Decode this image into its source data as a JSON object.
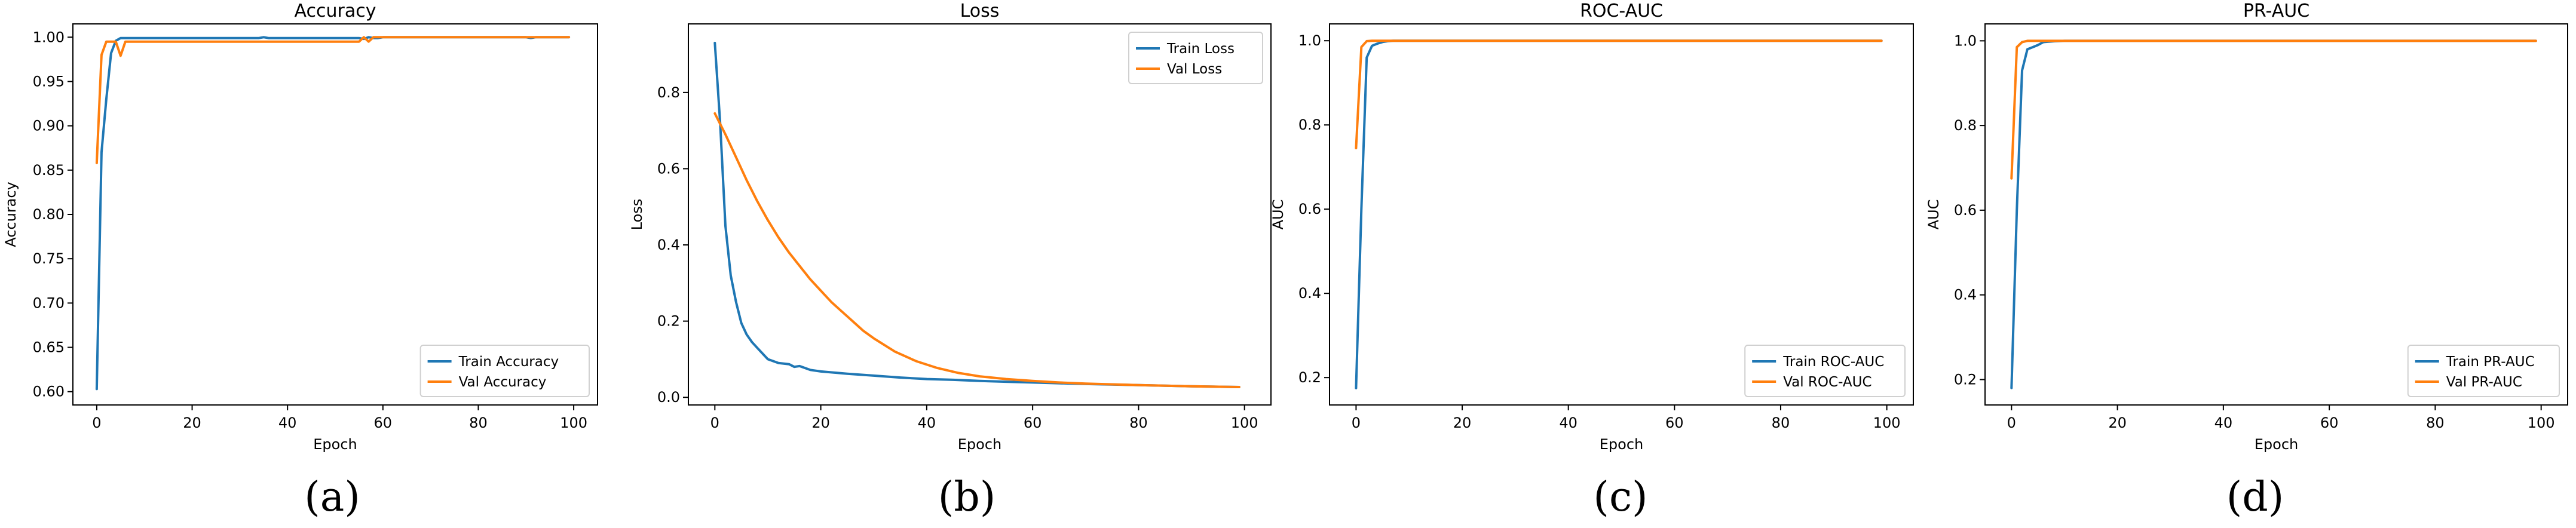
{
  "colors": {
    "train": "#1f77b4",
    "val": "#ff7f0e"
  },
  "panels": [
    {
      "letter": "(a)",
      "chart_data": {
        "type": "line",
        "title": "Accuracy",
        "xlabel": "Epoch",
        "ylabel": "Accuracy",
        "xlim": [
          -5,
          105
        ],
        "ylim": [
          0.585,
          1.015
        ],
        "xticks": [
          0,
          20,
          40,
          60,
          80,
          100
        ],
        "yticks": [
          0.6,
          0.65,
          0.7,
          0.75,
          0.8,
          0.85,
          0.9,
          0.95,
          1.0
        ],
        "ytick_labels": [
          "0.60",
          "0.65",
          "0.70",
          "0.75",
          "0.80",
          "0.85",
          "0.90",
          "0.95",
          "1.00"
        ],
        "grid": false,
        "legend_position": "lower-right",
        "series": [
          {
            "name": "Train Accuracy",
            "color": "#1f77b4",
            "x": [
              0,
              1,
              2,
              3,
              4,
              5,
              10,
              20,
              34,
              35,
              36,
              40,
              50,
              55,
              56,
              57,
              58,
              59,
              60,
              70,
              80,
              90,
              91,
              92,
              99
            ],
            "y": [
              0.603,
              0.87,
              0.93,
              0.982,
              0.996,
              0.999,
              0.999,
              0.999,
              0.999,
              1.0,
              0.999,
              0.999,
              0.999,
              0.999,
              0.998,
              1.0,
              0.999,
              0.999,
              1.0,
              1.0,
              1.0,
              1.0,
              0.999,
              1.0,
              1.0
            ]
          },
          {
            "name": "Val Accuracy",
            "color": "#ff7f0e",
            "x": [
              0,
              1,
              2,
              3,
              4,
              5,
              6,
              7,
              8,
              20,
              40,
              55,
              56,
              57,
              58,
              59,
              60,
              70,
              80,
              99
            ],
            "y": [
              0.858,
              0.98,
              0.995,
              0.995,
              0.995,
              0.979,
              0.995,
              0.995,
              0.995,
              0.995,
              0.995,
              0.995,
              1.0,
              0.995,
              1.0,
              1.0,
              1.0,
              1.0,
              1.0,
              1.0
            ]
          }
        ]
      }
    },
    {
      "letter": "(b)",
      "chart_data": {
        "type": "line",
        "title": "Loss",
        "xlabel": "Epoch",
        "ylabel": "Loss",
        "xlim": [
          -5,
          105
        ],
        "ylim": [
          -0.02,
          0.98
        ],
        "xticks": [
          0,
          20,
          40,
          60,
          80,
          100
        ],
        "yticks": [
          0.0,
          0.2,
          0.4,
          0.6,
          0.8
        ],
        "ytick_labels": [
          "0.0",
          "0.2",
          "0.4",
          "0.6",
          "0.8"
        ],
        "grid": false,
        "legend_position": "upper-right",
        "series": [
          {
            "name": "Train Loss",
            "color": "#1f77b4",
            "x": [
              0,
              1,
              2,
              3,
              4,
              5,
              6,
              7,
              8,
              9,
              10,
              12,
              14,
              15,
              16,
              18,
              20,
              25,
              30,
              35,
              40,
              45,
              50,
              55,
              60,
              70,
              80,
              90,
              99
            ],
            "y": [
              0.93,
              0.72,
              0.45,
              0.32,
              0.25,
              0.195,
              0.165,
              0.145,
              0.13,
              0.115,
              0.1,
              0.09,
              0.087,
              0.08,
              0.082,
              0.072,
              0.068,
              0.062,
              0.057,
              0.052,
              0.048,
              0.046,
              0.043,
              0.041,
              0.039,
              0.035,
              0.032,
              0.029,
              0.027
            ]
          },
          {
            "name": "Val Loss",
            "color": "#ff7f0e",
            "x": [
              0,
              2,
              4,
              6,
              8,
              10,
              12,
              14,
              16,
              18,
              20,
              22,
              24,
              26,
              28,
              30,
              34,
              38,
              42,
              46,
              50,
              55,
              60,
              65,
              70,
              80,
              90,
              99
            ],
            "y": [
              0.745,
              0.69,
              0.63,
              0.57,
              0.515,
              0.465,
              0.42,
              0.38,
              0.345,
              0.31,
              0.28,
              0.25,
              0.225,
              0.2,
              0.175,
              0.155,
              0.12,
              0.095,
              0.077,
              0.064,
              0.055,
              0.048,
              0.043,
              0.039,
              0.036,
              0.032,
              0.029,
              0.027
            ]
          }
        ]
      }
    },
    {
      "letter": "(c)",
      "chart_data": {
        "type": "line",
        "title": "ROC-AUC",
        "xlabel": "Epoch",
        "ylabel": "AUC",
        "xlim": [
          -5,
          105
        ],
        "ylim": [
          0.135,
          1.04
        ],
        "xticks": [
          0,
          20,
          40,
          60,
          80,
          100
        ],
        "yticks": [
          0.2,
          0.4,
          0.6,
          0.8,
          1.0
        ],
        "ytick_labels": [
          "0.2",
          "0.4",
          "0.6",
          "0.8",
          "1.0"
        ],
        "grid": false,
        "legend_position": "lower-right",
        "series": [
          {
            "name": "Train ROC-AUC",
            "color": "#1f77b4",
            "x": [
              0,
              1,
              2,
              3,
              4,
              5,
              6,
              7,
              10,
              20,
              40,
              60,
              80,
              99
            ],
            "y": [
              0.175,
              0.6,
              0.96,
              0.988,
              0.993,
              0.997,
              0.999,
              1.0,
              1.0,
              1.0,
              1.0,
              1.0,
              1.0,
              1.0
            ]
          },
          {
            "name": "Val ROC-AUC",
            "color": "#ff7f0e",
            "x": [
              0,
              1,
              2,
              3,
              4,
              6,
              10,
              20,
              40,
              60,
              80,
              99
            ],
            "y": [
              0.745,
              0.985,
              0.999,
              1.0,
              1.0,
              1.0,
              1.0,
              1.0,
              1.0,
              1.0,
              1.0,
              1.0
            ]
          }
        ]
      }
    },
    {
      "letter": "(d)",
      "chart_data": {
        "type": "line",
        "title": "PR-AUC",
        "xlabel": "Epoch",
        "ylabel": "AUC",
        "xlim": [
          -5,
          105
        ],
        "ylim": [
          0.14,
          1.04
        ],
        "xticks": [
          0,
          20,
          40,
          60,
          80,
          100
        ],
        "yticks": [
          0.2,
          0.4,
          0.6,
          0.8,
          1.0
        ],
        "ytick_labels": [
          "0.2",
          "0.4",
          "0.6",
          "0.8",
          "1.0"
        ],
        "grid": false,
        "legend_position": "lower-right",
        "series": [
          {
            "name": "Train PR-AUC",
            "color": "#1f77b4",
            "x": [
              0,
              1,
              2,
              3,
              4,
              5,
              6,
              8,
              10,
              20,
              40,
              60,
              80,
              99
            ],
            "y": [
              0.18,
              0.6,
              0.93,
              0.98,
              0.985,
              0.99,
              0.997,
              0.999,
              1.0,
              1.0,
              1.0,
              1.0,
              1.0,
              1.0
            ]
          },
          {
            "name": "Val PR-AUC",
            "color": "#ff7f0e",
            "x": [
              0,
              1,
              2,
              3,
              4,
              6,
              10,
              20,
              40,
              60,
              80,
              99
            ],
            "y": [
              0.675,
              0.985,
              0.997,
              1.0,
              1.0,
              1.0,
              1.0,
              1.0,
              1.0,
              1.0,
              1.0,
              1.0
            ]
          }
        ]
      }
    }
  ]
}
